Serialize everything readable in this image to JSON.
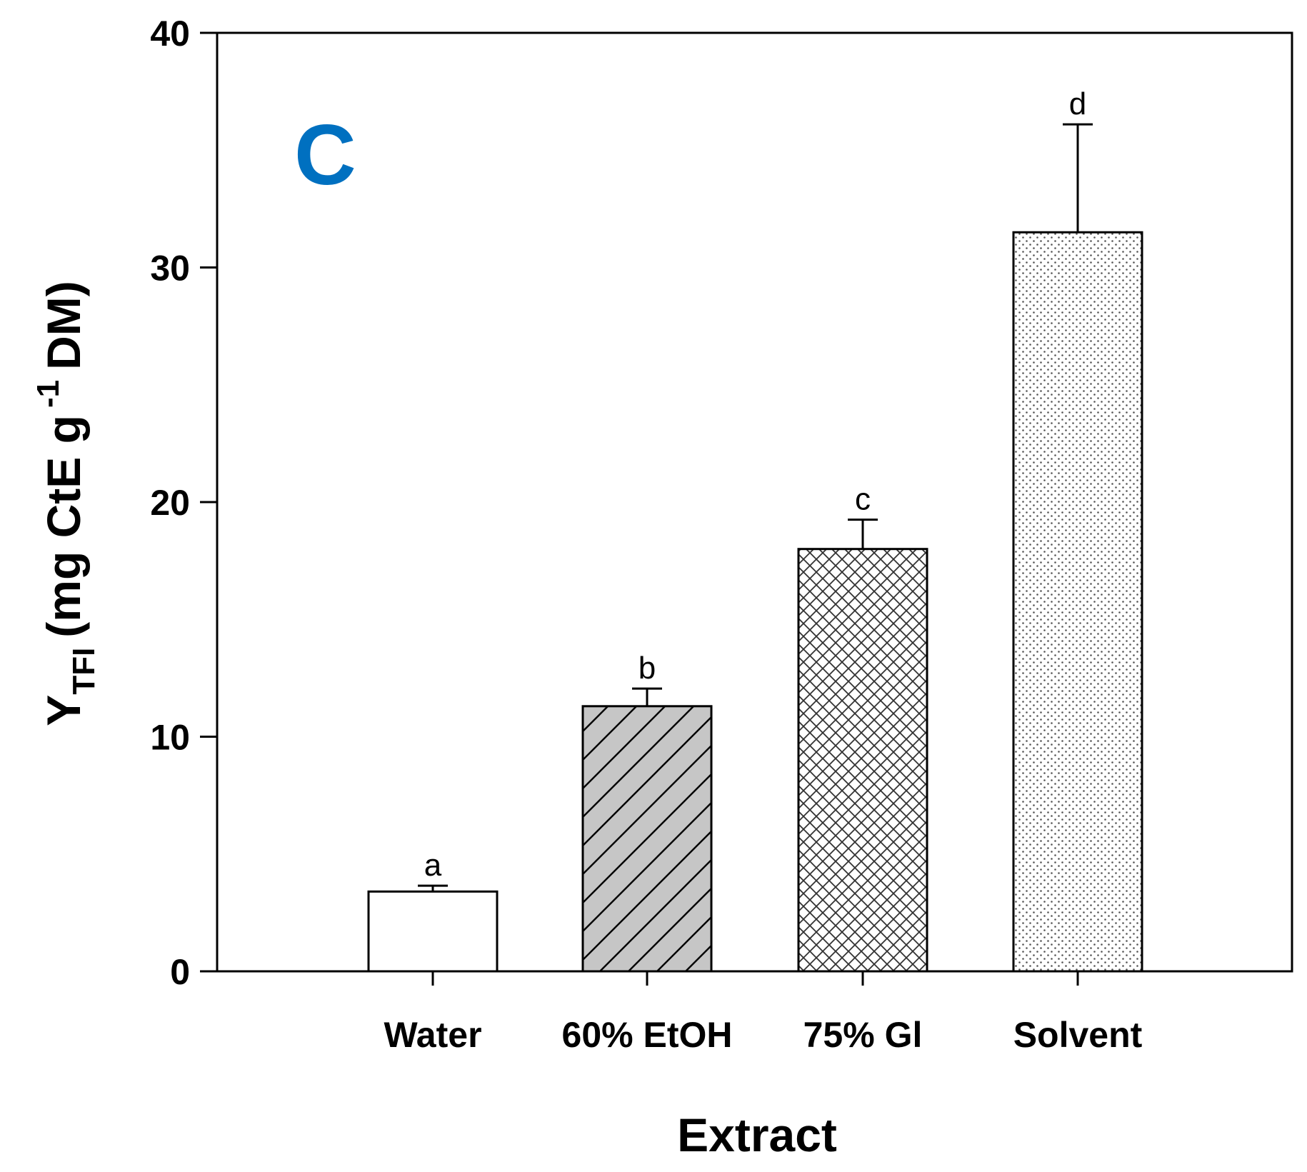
{
  "chart_data": {
    "type": "bar",
    "panel_label": "C",
    "categories": [
      "Water",
      "60% EtOH",
      "75% Gl",
      "Solvent"
    ],
    "values": [
      3.4,
      11.3,
      18.0,
      31.5
    ],
    "errors": [
      0.25,
      0.75,
      1.25,
      4.6
    ],
    "significance": [
      "a",
      "b",
      "c",
      "d"
    ],
    "patterns": [
      "blank",
      "diagonal-hatch",
      "crosshatch",
      "dots"
    ],
    "xlabel": "Extract",
    "ylabel": {
      "symbol": "Y",
      "subscript": "TFI",
      "unit_pre": "(mg CtE g",
      "superscript": "-1",
      "unit_post": "DM)"
    },
    "yticks": [
      "0",
      "10",
      "20",
      "30",
      "40"
    ],
    "ylim": [
      0,
      40
    ],
    "grid": false
  },
  "colors": {
    "panel_label": "#0070c0",
    "hatch_fill": "#c6c6c6",
    "axis": "#000000"
  }
}
